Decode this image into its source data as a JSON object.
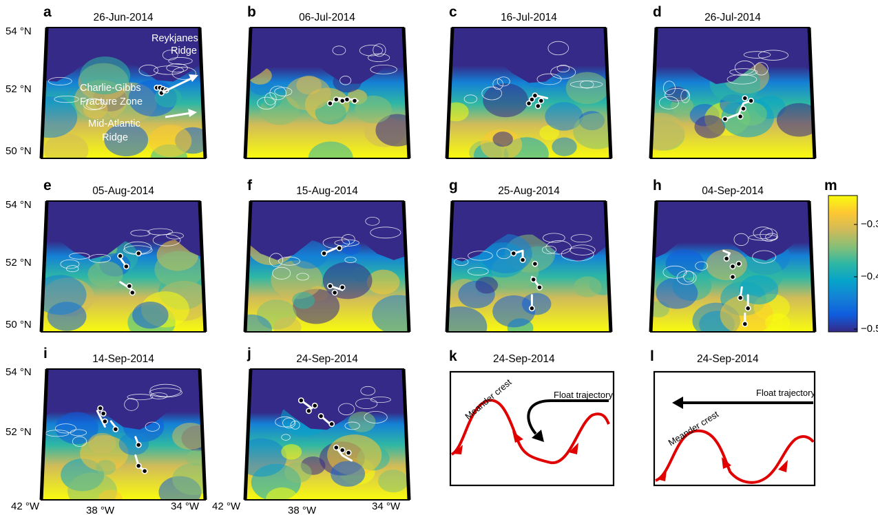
{
  "panels": [
    {
      "label": "a",
      "date": "26-Jun-2014",
      "seed": 1,
      "ice": 0.0,
      "floats": [
        [
          0.72,
          0.46
        ],
        [
          0.74,
          0.46
        ],
        [
          0.76,
          0.47
        ],
        [
          0.75,
          0.5
        ],
        [
          0.78,
          0.48
        ]
      ],
      "tracks": [
        [
          [
            0.71,
            0.45
          ],
          [
            0.79,
            0.48
          ]
        ]
      ]
    },
    {
      "label": "b",
      "date": "06-Jul-2014",
      "seed": 2,
      "ice": 0.2,
      "floats": [
        [
          0.52,
          0.58
        ],
        [
          0.56,
          0.55
        ],
        [
          0.6,
          0.56
        ],
        [
          0.63,
          0.55
        ],
        [
          0.68,
          0.56
        ]
      ],
      "tracks": [
        [
          [
            0.52,
            0.58
          ],
          [
            0.58,
            0.54
          ],
          [
            0.66,
            0.55
          ],
          [
            0.7,
            0.56
          ]
        ]
      ]
    },
    {
      "label": "c",
      "date": "16-Jul-2014",
      "seed": 3,
      "ice": 0.1,
      "floats": [
        [
          0.5,
          0.58
        ],
        [
          0.52,
          0.55
        ],
        [
          0.54,
          0.52
        ],
        [
          0.58,
          0.56
        ],
        [
          0.56,
          0.6
        ]
      ],
      "tracks": [
        [
          [
            0.5,
            0.58
          ],
          [
            0.55,
            0.52
          ],
          [
            0.62,
            0.54
          ]
        ]
      ]
    },
    {
      "label": "d",
      "date": "26-Jul-2014",
      "seed": 4,
      "ice": 0.15,
      "floats": [
        [
          0.45,
          0.7
        ],
        [
          0.55,
          0.68
        ],
        [
          0.57,
          0.62
        ],
        [
          0.58,
          0.54
        ],
        [
          0.62,
          0.56
        ]
      ],
      "tracks": [
        [
          [
            0.45,
            0.7
          ],
          [
            0.54,
            0.66
          ],
          [
            0.57,
            0.58
          ],
          [
            0.62,
            0.56
          ]
        ]
      ]
    },
    {
      "label": "e",
      "date": "05-Aug-2014",
      "seed": 5,
      "ice": 0.25,
      "floats": [
        [
          0.48,
          0.42
        ],
        [
          0.52,
          0.5
        ],
        [
          0.54,
          0.65
        ],
        [
          0.56,
          0.7
        ],
        [
          0.6,
          0.4
        ]
      ],
      "tracks": [
        [
          [
            0.47,
            0.42
          ],
          [
            0.52,
            0.5
          ]
        ],
        [
          [
            0.48,
            0.62
          ],
          [
            0.56,
            0.68
          ]
        ]
      ]
    },
    {
      "label": "f",
      "date": "15-Aug-2014",
      "seed": 6,
      "ice": 0.3,
      "floats": [
        [
          0.48,
          0.4
        ],
        [
          0.58,
          0.36
        ],
        [
          0.52,
          0.65
        ],
        [
          0.55,
          0.7
        ],
        [
          0.6,
          0.66
        ]
      ],
      "tracks": [
        [
          [
            0.48,
            0.4
          ],
          [
            0.56,
            0.36
          ]
        ],
        [
          [
            0.52,
            0.65
          ],
          [
            0.6,
            0.68
          ]
        ]
      ]
    },
    {
      "label": "g",
      "date": "25-Aug-2014",
      "seed": 7,
      "ice": 0.4,
      "floats": [
        [
          0.4,
          0.4
        ],
        [
          0.46,
          0.45
        ],
        [
          0.54,
          0.48
        ],
        [
          0.53,
          0.6
        ],
        [
          0.57,
          0.66
        ],
        [
          0.52,
          0.82
        ]
      ],
      "tracks": [
        [
          [
            0.4,
            0.4
          ],
          [
            0.46,
            0.38
          ],
          [
            0.46,
            0.45
          ]
        ],
        [
          [
            0.52,
            0.58
          ],
          [
            0.57,
            0.66
          ]
        ],
        [
          [
            0.52,
            0.72
          ],
          [
            0.52,
            0.82
          ]
        ]
      ]
    },
    {
      "label": "h",
      "date": "04-Sep-2014",
      "seed": 8,
      "ice": 0.35,
      "floats": [
        [
          0.46,
          0.44
        ],
        [
          0.5,
          0.5
        ],
        [
          0.54,
          0.48
        ],
        [
          0.5,
          0.58
        ],
        [
          0.55,
          0.74
        ],
        [
          0.6,
          0.82
        ],
        [
          0.58,
          0.94
        ]
      ],
      "tracks": [
        [
          [
            0.44,
            0.38
          ],
          [
            0.48,
            0.4
          ],
          [
            0.46,
            0.44
          ]
        ],
        [
          [
            0.56,
            0.66
          ],
          [
            0.55,
            0.74
          ]
        ],
        [
          [
            0.6,
            0.72
          ],
          [
            0.6,
            0.82
          ]
        ],
        [
          [
            0.58,
            0.86
          ],
          [
            0.58,
            0.94
          ]
        ]
      ]
    },
    {
      "label": "i",
      "date": "14-Sep-2014",
      "seed": 9,
      "ice": 0.45,
      "floats": [
        [
          0.35,
          0.3
        ],
        [
          0.37,
          0.34
        ],
        [
          0.38,
          0.4
        ],
        [
          0.45,
          0.46
        ],
        [
          0.6,
          0.58
        ],
        [
          0.6,
          0.74
        ],
        [
          0.64,
          0.78
        ]
      ],
      "tracks": [
        [
          [
            0.33,
            0.32
          ],
          [
            0.38,
            0.44
          ]
        ],
        [
          [
            0.42,
            0.4
          ],
          [
            0.46,
            0.46
          ]
        ],
        [
          [
            0.58,
            0.52
          ],
          [
            0.6,
            0.58
          ]
        ],
        [
          [
            0.58,
            0.66
          ],
          [
            0.6,
            0.74
          ],
          [
            0.64,
            0.78
          ]
        ]
      ]
    },
    {
      "label": "j",
      "date": "24-Sep-2014",
      "seed": 10,
      "ice": 0.5,
      "floats": [
        [
          0.33,
          0.24
        ],
        [
          0.38,
          0.32
        ],
        [
          0.42,
          0.28
        ],
        [
          0.46,
          0.36
        ],
        [
          0.53,
          0.42
        ],
        [
          0.56,
          0.6
        ],
        [
          0.6,
          0.62
        ],
        [
          0.64,
          0.64
        ]
      ],
      "tracks": [
        [
          [
            0.33,
            0.24
          ],
          [
            0.4,
            0.3
          ]
        ],
        [
          [
            0.46,
            0.36
          ],
          [
            0.52,
            0.42
          ]
        ],
        [
          [
            0.56,
            0.6
          ],
          [
            0.6,
            0.66
          ],
          [
            0.66,
            0.7
          ]
        ]
      ]
    }
  ],
  "panel_a_annotations": {
    "reykjanes": [
      "Reykjanes",
      "Ridge"
    ],
    "charlie": [
      "Charlie-Gibbs",
      "Fracture Zone"
    ],
    "mar": [
      "Mid-Atlantic",
      "Ridge"
    ]
  },
  "lat_labels": [
    "54 °N",
    "52 °N",
    "50 °N"
  ],
  "lon_labels": [
    "42 °W",
    "38 °W",
    "34 °W"
  ],
  "colorbar": {
    "label": "m",
    "ticks": [
      "−0.3",
      "−0.4",
      "−0.5"
    ],
    "tick_values": [
      -0.3,
      -0.4,
      -0.5
    ],
    "range": [
      -0.52,
      -0.25
    ],
    "colormap": [
      "#352a87",
      "#0f5cdd",
      "#1481d6",
      "#06a4ca",
      "#2eb7a4",
      "#87bf77",
      "#d1bb59",
      "#fec832",
      "#f9fb0e"
    ]
  },
  "diagrams": [
    {
      "label": "k",
      "date": "24-Sep-2014",
      "meander": "Meander crest",
      "float": "Float trajectory"
    },
    {
      "label": "l",
      "date": "24-Sep-2014",
      "meander": "Meander crest",
      "float": "Float trajectory"
    }
  ]
}
